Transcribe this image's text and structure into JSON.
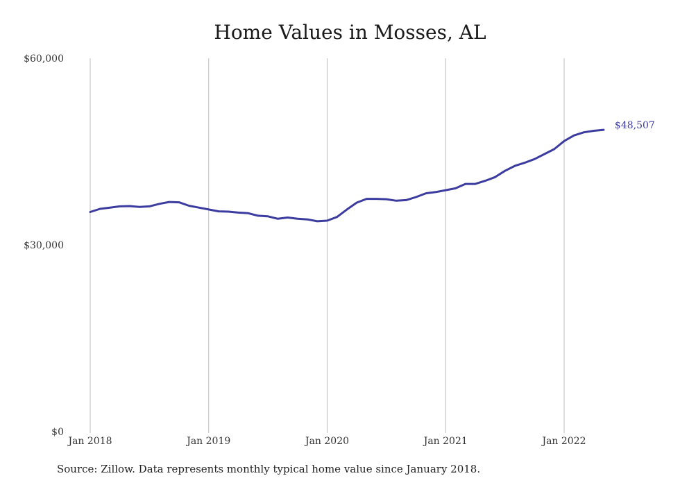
{
  "chart_data": {
    "type": "line",
    "title": "Home Values in Mosses, AL",
    "source": "Source: Zillow. Data represents monthly typical home value since January 2018.",
    "xlabel": "",
    "ylabel": "",
    "x_ticks": [
      "Jan 2018",
      "Jan 2019",
      "Jan 2020",
      "Jan 2021",
      "Jan 2022"
    ],
    "y_ticks": [
      "$0",
      "$30,000",
      "$60,000"
    ],
    "ylim": [
      0,
      60000
    ],
    "x_start": "2018-01",
    "grid": "vertical",
    "series": [
      {
        "color": "#3b3ba0",
        "end_label": "$48,507",
        "x": [
          "2018-01",
          "2018-02",
          "2018-03",
          "2018-04",
          "2018-05",
          "2018-06",
          "2018-07",
          "2018-08",
          "2018-09",
          "2018-10",
          "2018-11",
          "2018-12",
          "2019-01",
          "2019-02",
          "2019-03",
          "2019-04",
          "2019-05",
          "2019-06",
          "2019-07",
          "2019-08",
          "2019-09",
          "2019-10",
          "2019-11",
          "2019-12",
          "2020-01",
          "2020-02",
          "2020-03",
          "2020-04",
          "2020-05",
          "2020-06",
          "2020-07",
          "2020-08",
          "2020-09",
          "2020-10",
          "2020-11",
          "2020-12",
          "2021-01",
          "2021-02",
          "2021-03",
          "2021-04",
          "2021-05",
          "2021-06",
          "2021-07",
          "2021-08",
          "2021-09",
          "2021-10",
          "2021-11",
          "2021-12",
          "2022-01",
          "2022-02",
          "2022-03",
          "2022-04",
          "2022-05"
        ],
        "values": [
          35300,
          35800,
          36000,
          36200,
          36250,
          36100,
          36200,
          36600,
          36900,
          36850,
          36300,
          36000,
          35700,
          35400,
          35350,
          35200,
          35100,
          34700,
          34600,
          34200,
          34400,
          34200,
          34100,
          33800,
          33900,
          34500,
          35700,
          36800,
          37400,
          37400,
          37350,
          37100,
          37200,
          37700,
          38300,
          38500,
          38800,
          39100,
          39800,
          39800,
          40300,
          40900,
          41900,
          42700,
          43200,
          43800,
          44600,
          45400,
          46700,
          47600,
          48100,
          48350,
          48507
        ]
      }
    ]
  }
}
